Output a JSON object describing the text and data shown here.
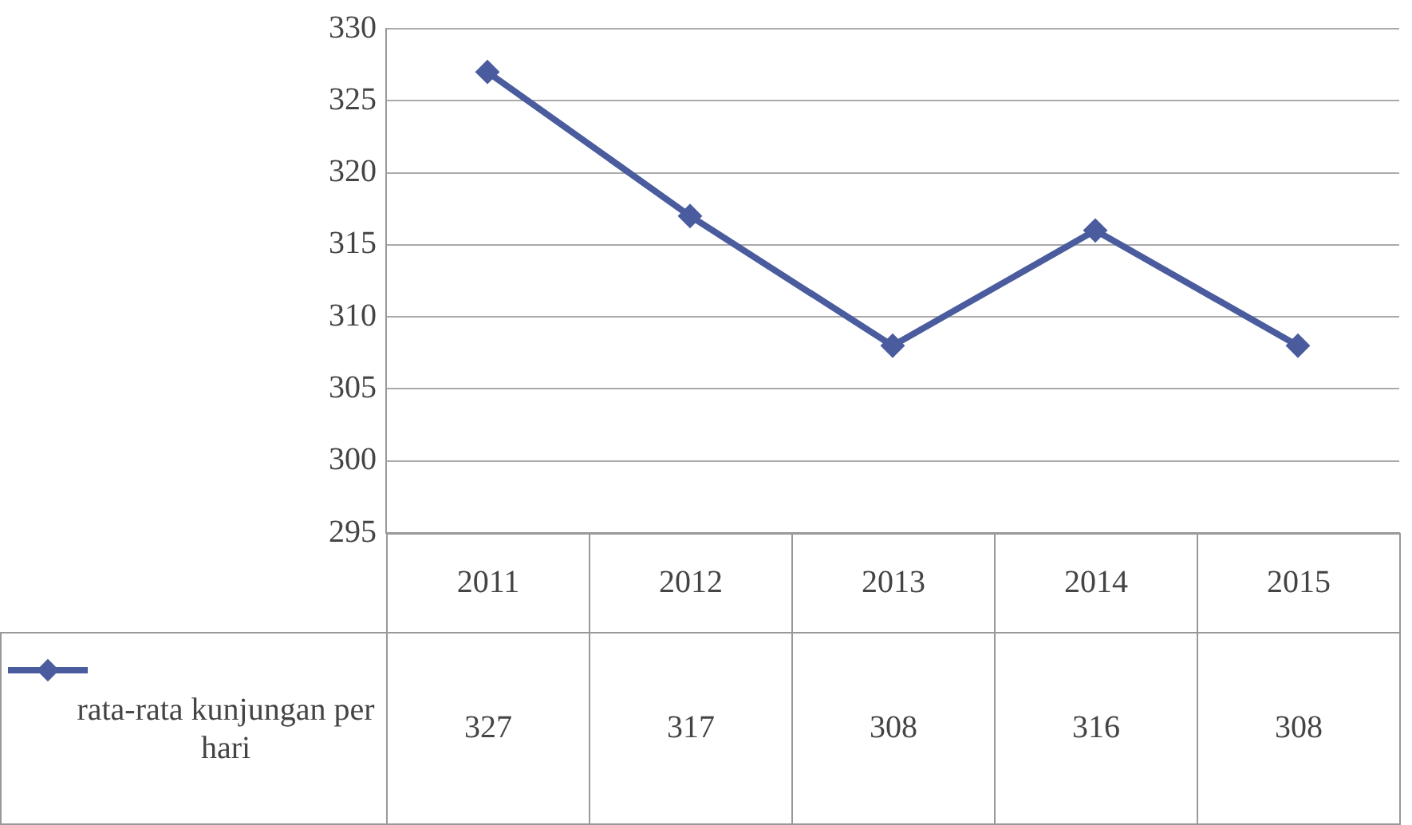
{
  "chart_data": {
    "type": "line",
    "categories": [
      "2011",
      "2012",
      "2013",
      "2014",
      "2015"
    ],
    "series": [
      {
        "name": "rata-rata kunjungan per hari",
        "color": "#4a5c9e",
        "values": [
          327,
          317,
          308,
          316,
          308
        ]
      }
    ],
    "ylim": [
      295,
      330
    ],
    "yticks": [
      295,
      300,
      305,
      310,
      315,
      320,
      325,
      330
    ],
    "grid": "y",
    "legend": "bottom left",
    "marker": "diamond",
    "line_style": "solid",
    "data_labels": true
  }
}
